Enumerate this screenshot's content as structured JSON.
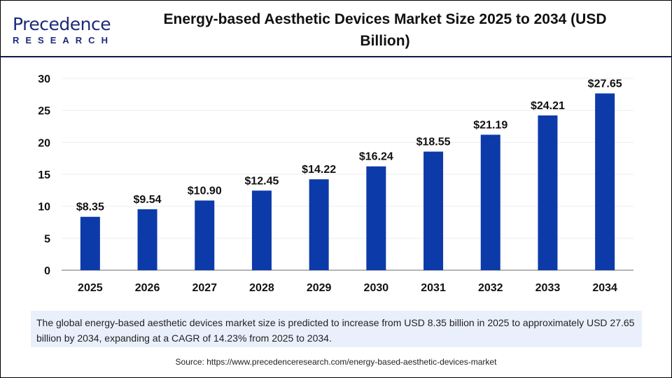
{
  "header": {
    "logo_top": "Precedence",
    "logo_bottom": "RESEARCH",
    "title": "Energy-based Aesthetic Devices Market Size 2025 to 2034 (USD Billion)"
  },
  "chart_data": {
    "type": "bar",
    "title": "Energy-based Aesthetic Devices Market Size 2025 to 2034 (USD Billion)",
    "categories": [
      "2025",
      "2026",
      "2027",
      "2028",
      "2029",
      "2030",
      "2031",
      "2032",
      "2033",
      "2034"
    ],
    "values": [
      8.35,
      9.54,
      10.9,
      12.45,
      14.22,
      16.24,
      18.55,
      21.19,
      24.21,
      27.65
    ],
    "data_labels": [
      "$8.35",
      "$9.54",
      "$10.90",
      "$12.45",
      "$14.22",
      "$16.24",
      "$18.55",
      "$21.19",
      "$24.21",
      "$27.65"
    ],
    "ylim": [
      0,
      30
    ],
    "yticks": [
      "0",
      "5",
      "10",
      "15",
      "20",
      "25",
      "30"
    ],
    "grid": true,
    "bar_color": "#0d3aa9"
  },
  "note": "The global energy-based aesthetic devices market size is predicted to increase from USD 8.35 billion in 2025 to approximately USD 27.65 billion by 2034, expanding at a CAGR of 14.23% from 2025 to 2034.",
  "source": "Source: https://www.precedenceresearch.com/energy-based-aesthetic-devices-market"
}
